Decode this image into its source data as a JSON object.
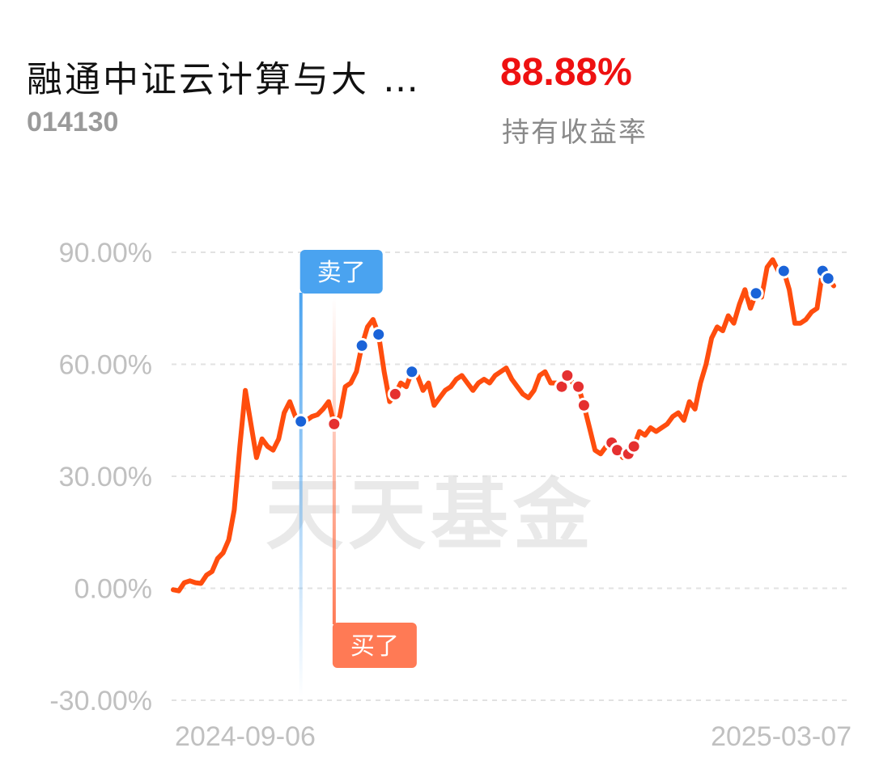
{
  "fund": {
    "name": "融通中证云计算与大 …",
    "code": "014130",
    "return_value": "88.88%",
    "return_label": "持有收益率"
  },
  "colors": {
    "line": "#ff4d0e",
    "sell": "#4aa3f0",
    "buy": "#ff7a55",
    "marker_blue": "#1a63d8",
    "marker_red": "#e53030"
  },
  "watermark": "天天基金",
  "chart_data": {
    "type": "line",
    "ylim": [
      -30,
      90
    ],
    "yticks": [
      "90.00%",
      "60.00%",
      "30.00%",
      "0.00%",
      "-30.00%"
    ],
    "ytick_values": [
      90,
      60,
      30,
      0,
      -30
    ],
    "xticks": [
      "2024-09-06",
      "2025-03-07"
    ],
    "grid": true,
    "series": [
      {
        "values": [
          -0.4,
          -0.7,
          1.5,
          2.0,
          1.5,
          1.3,
          3.5,
          4.5,
          8.0,
          9.5,
          13,
          21,
          38,
          53,
          44,
          35,
          40,
          38,
          37,
          40,
          47,
          50,
          46,
          44.7,
          45,
          46,
          46.5,
          48,
          50,
          44,
          46,
          54,
          55,
          58,
          65,
          70,
          72,
          68,
          58,
          50,
          52,
          55,
          54,
          58,
          57,
          53,
          55,
          49,
          51,
          53,
          54,
          56,
          57,
          55,
          53,
          55,
          56,
          55,
          57,
          58,
          59,
          56,
          54,
          52,
          51,
          53,
          57,
          58,
          55,
          55,
          54,
          57,
          55,
          54,
          49,
          43,
          37,
          36,
          38,
          39,
          37,
          35,
          36,
          38,
          42,
          41,
          43,
          42,
          43,
          44,
          46,
          47,
          45,
          50,
          48,
          55,
          60,
          67,
          70,
          69,
          73,
          71,
          76,
          80,
          75,
          79,
          78,
          86,
          88,
          85,
          85,
          80,
          71,
          71,
          72,
          74,
          75,
          85,
          83,
          81
        ]
      }
    ],
    "markers": [
      {
        "index": 23,
        "kind": "sell"
      },
      {
        "index": 29,
        "kind": "buy"
      },
      {
        "index": 34,
        "kind": "sell"
      },
      {
        "index": 37,
        "kind": "sell"
      },
      {
        "index": 40,
        "kind": "buy"
      },
      {
        "index": 43,
        "kind": "sell"
      },
      {
        "index": 70,
        "kind": "buy"
      },
      {
        "index": 71,
        "kind": "buy"
      },
      {
        "index": 73,
        "kind": "buy"
      },
      {
        "index": 74,
        "kind": "buy"
      },
      {
        "index": 79,
        "kind": "buy"
      },
      {
        "index": 80,
        "kind": "buy"
      },
      {
        "index": 82,
        "kind": "buy"
      },
      {
        "index": 83,
        "kind": "buy"
      },
      {
        "index": 105,
        "kind": "sell"
      },
      {
        "index": 110,
        "kind": "sell"
      },
      {
        "index": 117,
        "kind": "sell"
      },
      {
        "index": 118,
        "kind": "sell"
      }
    ],
    "annotations": [
      {
        "label": "卖了",
        "index": 23,
        "kind": "sell"
      },
      {
        "label": "买了",
        "index": 29,
        "kind": "buy"
      }
    ]
  }
}
